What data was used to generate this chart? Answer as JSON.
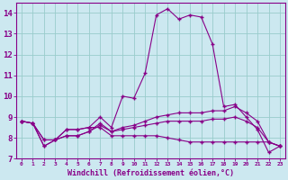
{
  "x": [
    0,
    1,
    2,
    3,
    4,
    5,
    6,
    7,
    8,
    9,
    10,
    11,
    12,
    13,
    14,
    15,
    16,
    17,
    18,
    19,
    20,
    21,
    22,
    23
  ],
  "line1": [
    8.8,
    8.7,
    7.6,
    7.9,
    8.4,
    8.4,
    8.5,
    9.0,
    8.5,
    10.0,
    9.9,
    11.1,
    13.9,
    14.2,
    13.7,
    13.9,
    13.8,
    12.5,
    9.5,
    9.6,
    9.0,
    8.4,
    7.3,
    7.6
  ],
  "line2": [
    8.8,
    8.7,
    7.6,
    7.9,
    8.4,
    8.4,
    8.5,
    8.5,
    8.1,
    8.1,
    8.1,
    8.1,
    8.1,
    8.0,
    7.9,
    7.8,
    7.8,
    7.8,
    7.8,
    7.8,
    7.8,
    7.8,
    7.8,
    7.6
  ],
  "line3": [
    8.8,
    8.7,
    7.9,
    7.9,
    8.1,
    8.1,
    8.3,
    8.7,
    8.3,
    8.5,
    8.6,
    8.8,
    9.0,
    9.1,
    9.2,
    9.2,
    9.2,
    9.3,
    9.3,
    9.5,
    9.2,
    8.8,
    7.8,
    7.6
  ],
  "line4": [
    8.8,
    8.7,
    7.9,
    7.9,
    8.1,
    8.1,
    8.3,
    8.6,
    8.3,
    8.4,
    8.5,
    8.6,
    8.7,
    8.8,
    8.8,
    8.8,
    8.8,
    8.9,
    8.9,
    9.0,
    8.8,
    8.5,
    7.8,
    7.6
  ],
  "line_color": "#880088",
  "bg_color": "#cce8f0",
  "grid_color": "#99cccc",
  "ylim": [
    7,
    14.5
  ],
  "yticks": [
    7,
    8,
    9,
    10,
    11,
    12,
    13,
    14
  ],
  "xticks": [
    0,
    1,
    2,
    3,
    4,
    5,
    6,
    7,
    8,
    9,
    10,
    11,
    12,
    13,
    14,
    15,
    16,
    17,
    18,
    19,
    20,
    21,
    22,
    23
  ],
  "xlabel": "Windchill (Refroidissement éolien,°C)",
  "tick_color": "#880088"
}
